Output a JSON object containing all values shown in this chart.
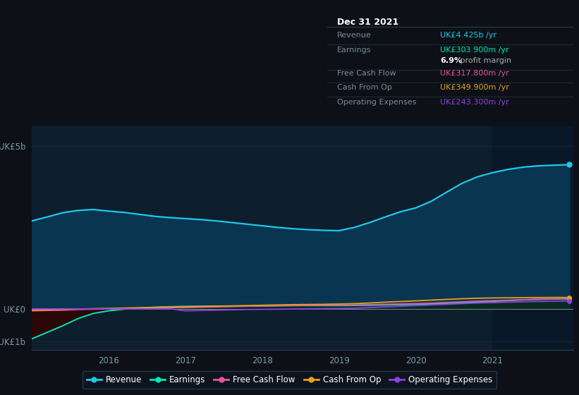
{
  "bg_color": "#0d1117",
  "plot_bg_color": "#0d1e2d",
  "highlight_bg_color": "#0a1e2d",
  "grid_color": "#1a3040",
  "title_date": "Dec 31 2021",
  "years": [
    2015.0,
    2015.2,
    2015.4,
    2015.6,
    2015.8,
    2016.0,
    2016.2,
    2016.4,
    2016.6,
    2016.8,
    2017.0,
    2017.2,
    2017.4,
    2017.6,
    2017.8,
    2018.0,
    2018.2,
    2018.4,
    2018.6,
    2018.8,
    2019.0,
    2019.2,
    2019.4,
    2019.6,
    2019.8,
    2020.0,
    2020.2,
    2020.4,
    2020.6,
    2020.8,
    2021.0,
    2021.2,
    2021.4,
    2021.6,
    2021.8,
    2022.0
  ],
  "revenue": [
    2.7,
    2.82,
    2.95,
    3.02,
    3.05,
    3.0,
    2.96,
    2.9,
    2.84,
    2.8,
    2.77,
    2.74,
    2.7,
    2.65,
    2.6,
    2.55,
    2.5,
    2.46,
    2.43,
    2.41,
    2.4,
    2.5,
    2.65,
    2.82,
    2.98,
    3.1,
    3.3,
    3.58,
    3.85,
    4.05,
    4.18,
    4.28,
    4.35,
    4.39,
    4.41,
    4.425
  ],
  "earnings": [
    -0.92,
    -0.72,
    -0.52,
    -0.3,
    -0.14,
    -0.06,
    -0.01,
    0.025,
    0.05,
    0.065,
    0.075,
    0.08,
    0.083,
    0.085,
    0.087,
    0.09,
    0.095,
    0.1,
    0.1,
    0.1,
    0.1,
    0.105,
    0.11,
    0.12,
    0.13,
    0.14,
    0.15,
    0.17,
    0.19,
    0.21,
    0.23,
    0.255,
    0.275,
    0.29,
    0.3,
    0.304
  ],
  "free_cash_flow": [
    -0.06,
    -0.05,
    -0.04,
    -0.02,
    -0.01,
    -0.005,
    0.005,
    0.015,
    0.025,
    0.035,
    0.04,
    0.05,
    0.06,
    0.07,
    0.08,
    0.09,
    0.095,
    0.1,
    0.105,
    0.11,
    0.115,
    0.12,
    0.13,
    0.14,
    0.15,
    0.16,
    0.175,
    0.195,
    0.215,
    0.235,
    0.25,
    0.265,
    0.28,
    0.295,
    0.308,
    0.318
  ],
  "cash_from_op": [
    -0.04,
    -0.03,
    -0.015,
    -0.005,
    0.005,
    0.015,
    0.025,
    0.035,
    0.045,
    0.055,
    0.065,
    0.075,
    0.085,
    0.09,
    0.1,
    0.11,
    0.12,
    0.13,
    0.135,
    0.14,
    0.148,
    0.16,
    0.18,
    0.205,
    0.225,
    0.245,
    0.268,
    0.29,
    0.31,
    0.325,
    0.335,
    0.34,
    0.345,
    0.348,
    0.35,
    0.35
  ],
  "op_expenses": [
    0.0,
    0.0,
    0.0,
    0.0,
    0.0,
    0.0,
    0.0,
    0.0,
    0.0,
    0.0,
    -0.06,
    -0.05,
    -0.04,
    -0.03,
    -0.02,
    -0.015,
    -0.01,
    -0.005,
    0.0,
    0.005,
    0.01,
    0.02,
    0.04,
    0.06,
    0.08,
    0.1,
    0.12,
    0.14,
    0.16,
    0.18,
    0.19,
    0.205,
    0.215,
    0.225,
    0.235,
    0.243
  ],
  "revenue_color": "#1ec8e8",
  "earnings_color": "#00e8b8",
  "fcf_color": "#e855a0",
  "cfop_color": "#e8a020",
  "opex_color": "#9040e0",
  "revenue_fill": "#0a3550",
  "earnings_neg_fill": "#2a0808",
  "earnings_pos_fill": "#082818",
  "highlight_x_start": 2021.0,
  "highlight_x_end": 2022.05,
  "ylim_min": -1.25,
  "ylim_max": 5.6,
  "xlim_min": 2015.0,
  "xlim_max": 2022.05,
  "yticks": [
    -1.0,
    0.0,
    5.0
  ],
  "ytick_labels": [
    "-UK£1b",
    "UK£0",
    "UK£5b"
  ],
  "xticks": [
    2016,
    2017,
    2018,
    2019,
    2020,
    2021
  ],
  "legend_items": [
    {
      "label": "Revenue",
      "color": "#1ec8e8"
    },
    {
      "label": "Earnings",
      "color": "#00e8b8"
    },
    {
      "label": "Free Cash Flow",
      "color": "#e855a0"
    },
    {
      "label": "Cash From Op",
      "color": "#e8a020"
    },
    {
      "label": "Operating Expenses",
      "color": "#9040e0"
    }
  ],
  "table_title": "Dec 31 2021",
  "table_rows": [
    {
      "label": "Revenue",
      "value": "UK£4.425b /yr",
      "color": "#1ec8e8"
    },
    {
      "label": "Earnings",
      "value": "UK£303.900m /yr",
      "color": "#00e8b8"
    },
    {
      "label": "",
      "value": "profit margin",
      "color": "#cccccc",
      "bold": "6.9%"
    },
    {
      "label": "Free Cash Flow",
      "value": "UK£317.800m /yr",
      "color": "#e855a0"
    },
    {
      "label": "Cash From Op",
      "value": "UK£349.900m /yr",
      "color": "#e8a020"
    },
    {
      "label": "Operating Expenses",
      "value": "UK£243.300m /yr",
      "color": "#9040e0"
    }
  ]
}
